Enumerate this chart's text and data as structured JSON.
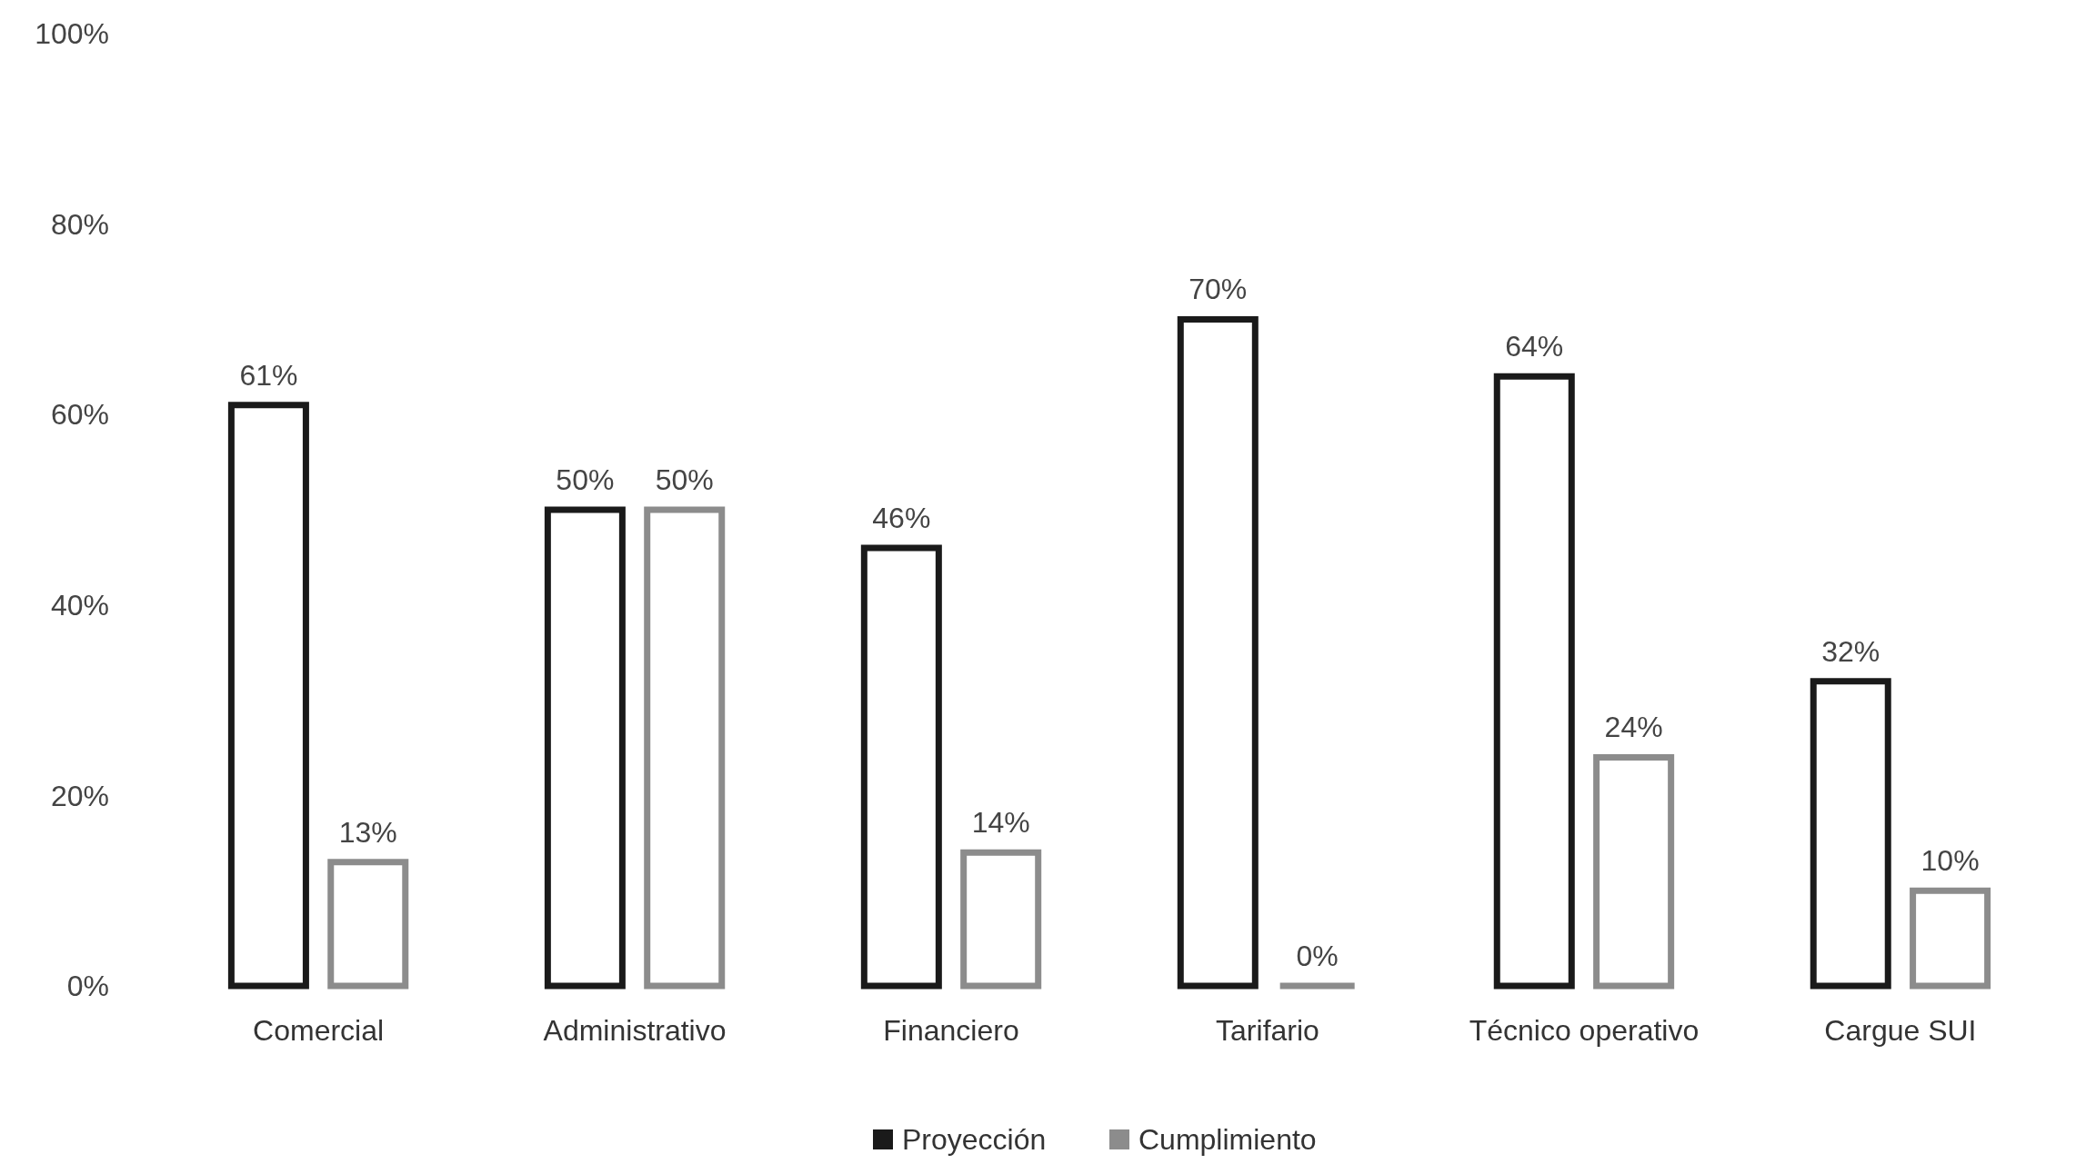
{
  "chart_data": {
    "type": "bar",
    "categories": [
      "Comercial",
      "Administrativo",
      "Financiero",
      "Tarifario",
      "Técnico operativo",
      "Cargue SUI"
    ],
    "series": [
      {
        "name": "Proyección",
        "color": "#1a1a1a",
        "values": [
          61,
          50,
          46,
          70,
          64,
          32
        ],
        "value_labels": [
          "61%",
          "50%",
          "46%",
          "70%",
          "64%",
          "32%"
        ]
      },
      {
        "name": "Cumplimiento",
        "color": "#8c8c8c",
        "values": [
          13,
          50,
          14,
          0,
          24,
          10
        ],
        "value_labels": [
          "13%",
          "50%",
          "14%",
          "0%",
          "24%",
          "10%"
        ]
      }
    ],
    "ylim": [
      0,
      100
    ],
    "yticks": [
      {
        "value": 0,
        "label": "0%"
      },
      {
        "value": 20,
        "label": "20%"
      },
      {
        "value": 40,
        "label": "40%"
      },
      {
        "value": 60,
        "label": "60%"
      },
      {
        "value": 80,
        "label": "80%"
      },
      {
        "value": 100,
        "label": "100%"
      }
    ],
    "grid": false,
    "legend": "bottom"
  }
}
